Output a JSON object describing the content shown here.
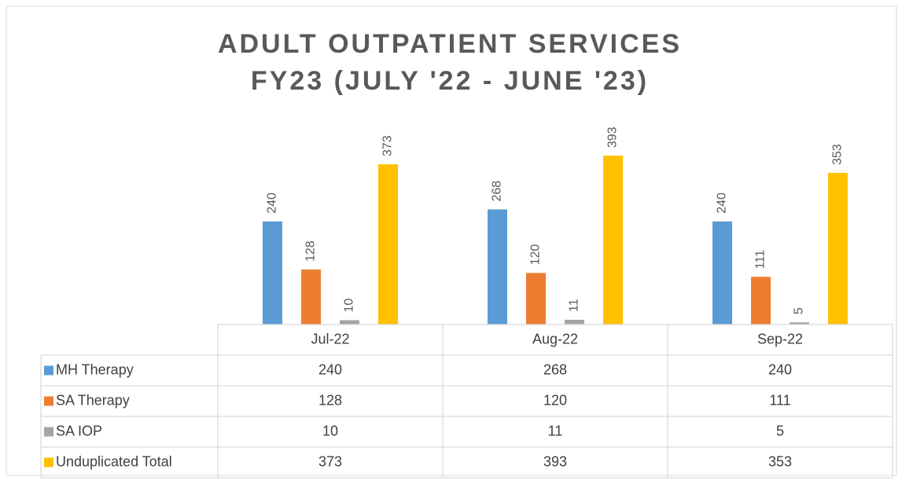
{
  "chart_data": {
    "type": "bar",
    "title": [
      "ADULT OUTPATIENT SERVICES",
      "FY23 (JULY '22 - JUNE '23)"
    ],
    "categories": [
      "Jul-22",
      "Aug-22",
      "Sep-22"
    ],
    "series": [
      {
        "name": "MH Therapy",
        "color": "#5b9bd5",
        "values": [
          240,
          268,
          240
        ]
      },
      {
        "name": "SA Therapy",
        "color": "#ed7d31",
        "values": [
          128,
          120,
          111
        ]
      },
      {
        "name": "SA IOP",
        "color": "#a5a5a5",
        "values": [
          10,
          11,
          5
        ]
      },
      {
        "name": "Unduplicated Total",
        "color": "#ffc000",
        "values": [
          373,
          393,
          353
        ]
      }
    ],
    "ylim": [
      0,
      450
    ]
  }
}
